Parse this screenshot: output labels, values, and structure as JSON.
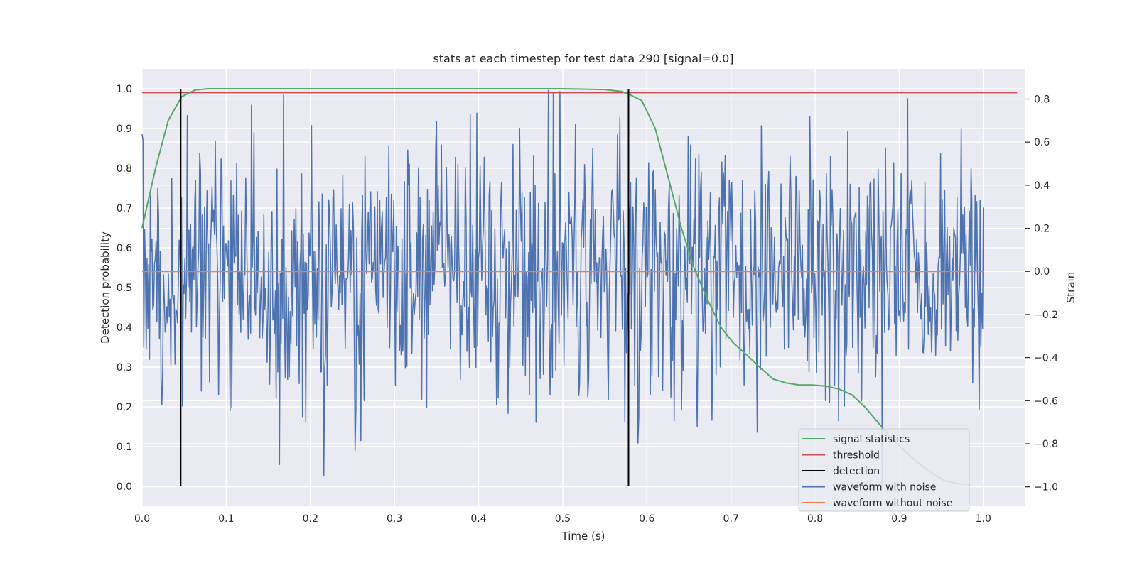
{
  "chart_data": {
    "type": "line",
    "title": "stats at each timestep for test data 290 [signal=0.0]",
    "xlabel": "Time (s)",
    "ylabel_left": "Detection probability",
    "ylabel_right": "Strain",
    "xlim": [
      0.0,
      1.05
    ],
    "ylim_left": [
      -0.05,
      1.05
    ],
    "ylim_right": [
      -1.09,
      0.94
    ],
    "x_ticks": [
      0.0,
      0.1,
      0.2,
      0.3,
      0.4,
      0.5,
      0.6,
      0.7,
      0.8,
      0.9,
      1.0
    ],
    "x_tick_labels": [
      "0.0",
      "0.1",
      "0.2",
      "0.3",
      "0.4",
      "0.5",
      "0.6",
      "0.7",
      "0.8",
      "0.9",
      "1.0"
    ],
    "y_left_ticks": [
      0.0,
      0.1,
      0.2,
      0.3,
      0.4,
      0.5,
      0.6,
      0.7,
      0.8,
      0.9,
      1.0
    ],
    "y_left_tick_labels": [
      "0.0",
      "0.1",
      "0.2",
      "0.3",
      "0.4",
      "0.5",
      "0.6",
      "0.7",
      "0.8",
      "0.9",
      "1.0"
    ],
    "y_right_ticks": [
      -1.0,
      -0.8,
      -0.6,
      -0.4,
      -0.2,
      0.0,
      0.2,
      0.4,
      0.6,
      0.8
    ],
    "y_right_tick_labels": [
      "−1.0",
      "−0.8",
      "−0.6",
      "−0.4",
      "−0.2",
      "0.0",
      "0.2",
      "0.4",
      "0.6",
      "0.8"
    ],
    "grid": true,
    "legend_position": "lower-right",
    "series": [
      {
        "name": "signal statistics",
        "color": "#55a868",
        "axis": "left",
        "x": [
          0.0,
          0.016,
          0.031,
          0.047,
          0.063,
          0.078,
          0.1,
          0.2,
          0.3,
          0.4,
          0.5,
          0.55,
          0.57,
          0.58,
          0.594,
          0.61,
          0.625,
          0.641,
          0.656,
          0.672,
          0.688,
          0.703,
          0.719,
          0.734,
          0.75,
          0.766,
          0.781,
          0.797,
          0.813,
          0.828,
          0.844,
          0.859,
          0.875,
          0.891,
          0.906,
          0.922,
          0.938,
          0.953,
          0.969,
          0.984
        ],
        "y": [
          0.65,
          0.8,
          0.92,
          0.98,
          0.997,
          1.0,
          1.0,
          1.0,
          1.0,
          1.0,
          1.0,
          0.998,
          0.993,
          0.985,
          0.97,
          0.9,
          0.78,
          0.65,
          0.55,
          0.47,
          0.4,
          0.36,
          0.33,
          0.3,
          0.27,
          0.26,
          0.255,
          0.255,
          0.252,
          0.245,
          0.23,
          0.2,
          0.16,
          0.12,
          0.09,
          0.06,
          0.035,
          0.015,
          0.007,
          0.005
        ]
      },
      {
        "name": "threshold",
        "color": "#c44e52",
        "axis": "left",
        "x": [
          0.0,
          1.04
        ],
        "y": [
          0.99,
          0.99
        ]
      },
      {
        "name": "detection",
        "color": "#000000",
        "axis": "left",
        "x": [
          0.0459,
          0.5782
        ],
        "y_range": [
          0.0,
          1.0
        ]
      },
      {
        "name": "waveform with noise",
        "color": "#4c72b0",
        "axis": "right",
        "samples": 1024,
        "x_range": [
          0.0,
          1.0
        ],
        "min": -1.0,
        "max": 0.84,
        "std": 0.3
      },
      {
        "name": "waveform without noise",
        "color": "#dd8452",
        "axis": "right",
        "x": [
          0.0,
          1.0
        ],
        "y": [
          0.0,
          0.0
        ]
      }
    ]
  }
}
